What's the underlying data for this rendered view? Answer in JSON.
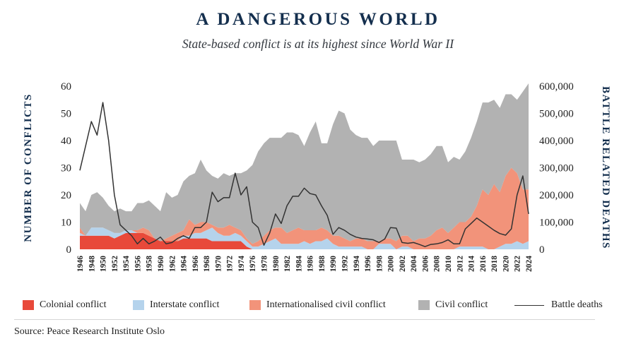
{
  "header": {
    "title": "A DANGEROUS WORLD",
    "subtitle": "State-based conflict is at its highest since World War II"
  },
  "source": "Source: Peace Research Institute Oslo",
  "colors": {
    "colonial": "#e8493a",
    "interstate": "#b5d3ec",
    "internationalised": "#f2937a",
    "civil": "#b2b2b2",
    "battle_line": "#333333",
    "axis_text": "#142f4e"
  },
  "chart_data": {
    "type": "area",
    "stacked": true,
    "x": [
      1946,
      1947,
      1948,
      1949,
      1950,
      1951,
      1952,
      1953,
      1954,
      1955,
      1956,
      1957,
      1958,
      1959,
      1960,
      1961,
      1962,
      1963,
      1964,
      1965,
      1966,
      1967,
      1968,
      1969,
      1970,
      1971,
      1972,
      1973,
      1974,
      1975,
      1976,
      1977,
      1978,
      1979,
      1980,
      1981,
      1982,
      1983,
      1984,
      1985,
      1986,
      1987,
      1988,
      1989,
      1990,
      1991,
      1992,
      1993,
      1994,
      1995,
      1996,
      1997,
      1998,
      1999,
      2000,
      2001,
      2002,
      2003,
      2004,
      2005,
      2006,
      2007,
      2008,
      2009,
      2010,
      2011,
      2012,
      2013,
      2014,
      2015,
      2016,
      2017,
      2018,
      2019,
      2020,
      2021,
      2022,
      2023,
      2024
    ],
    "x_tick_labels": [
      "1946",
      "1948",
      "1950",
      "1952",
      "1954",
      "1956",
      "1958",
      "1960",
      "1962",
      "1964",
      "1966",
      "1968",
      "1970",
      "1972",
      "1974",
      "1976",
      "1978",
      "1980",
      "1982",
      "1984",
      "1986",
      "1988",
      "1990",
      "1992",
      "1994",
      "1996",
      "1998",
      "2000",
      "2002",
      "2004",
      "2006",
      "2008",
      "2010",
      "2012",
      "2014",
      "2016",
      "2018",
      "2020",
      "2022",
      "2024"
    ],
    "ylabel": "NUMBER OF CONFLICTS",
    "y2label": "BATTLE RELATED DEATHS",
    "ylim": [
      0,
      60
    ],
    "y_ticks": [
      "0",
      "10",
      "20",
      "30",
      "40",
      "50",
      "60"
    ],
    "y2lim": [
      0,
      600000
    ],
    "y2_ticks": [
      "0",
      "100,000",
      "200,000",
      "300,000",
      "400,000",
      "500,000",
      "600,000"
    ],
    "legend": [
      "Colonial conflict",
      "Interstate conflict",
      "Internationalised civil conflict",
      "Civil conflict",
      "Battle deaths"
    ],
    "series": [
      {
        "name": "Colonial conflict",
        "values": [
          5,
          5,
          5,
          5,
          5,
          5,
          4,
          5,
          6,
          6,
          6,
          6,
          5,
          4,
          3,
          3,
          3,
          3,
          4,
          4,
          4,
          4,
          4,
          3,
          3,
          3,
          3,
          3,
          3,
          1,
          0,
          0,
          0,
          0,
          0,
          0,
          0,
          0,
          0,
          0,
          0,
          0,
          0,
          0,
          0,
          0,
          0,
          0,
          0,
          0,
          0,
          0,
          0,
          0,
          0,
          0,
          0,
          0,
          0,
          0,
          0,
          0,
          0,
          0,
          0,
          0,
          0,
          0,
          0,
          0,
          0,
          0,
          0,
          0,
          0,
          0,
          0,
          0,
          0
        ]
      },
      {
        "name": "Interstate conflict",
        "values": [
          1,
          0,
          3,
          3,
          3,
          2,
          2,
          1,
          1,
          1,
          0,
          0,
          0,
          0,
          0,
          0,
          0,
          0,
          1,
          1,
          2,
          2,
          3,
          5,
          3,
          2,
          2,
          3,
          2,
          2,
          1,
          1,
          2,
          3,
          4,
          2,
          2,
          2,
          2,
          3,
          2,
          3,
          3,
          4,
          2,
          1,
          1,
          1,
          1,
          1,
          0,
          0,
          2,
          2,
          2,
          0,
          1,
          1,
          0,
          0,
          0,
          0,
          0,
          0,
          0,
          0,
          1,
          1,
          1,
          1,
          1,
          0,
          0,
          1,
          2,
          2,
          3,
          2,
          3
        ]
      },
      {
        "name": "Internationalised civil conflict",
        "values": [
          2,
          0,
          0,
          0,
          0,
          0,
          0,
          0,
          0,
          0,
          1,
          2,
          2,
          0,
          0,
          1,
          2,
          3,
          2,
          6,
          3,
          4,
          3,
          1,
          2,
          3,
          4,
          2,
          2,
          1,
          1,
          2,
          3,
          4,
          4,
          6,
          4,
          5,
          6,
          4,
          5,
          4,
          5,
          3,
          3,
          4,
          3,
          2,
          3,
          3,
          3,
          3,
          1,
          2,
          2,
          3,
          4,
          4,
          3,
          4,
          4,
          5,
          7,
          8,
          6,
          8,
          9,
          9,
          11,
          15,
          21,
          20,
          24,
          20,
          25,
          28,
          25,
          20,
          19
        ]
      },
      {
        "name": "Civil conflict",
        "values": [
          9,
          9,
          12,
          13,
          11,
          9,
          8,
          9,
          7,
          7,
          10,
          9,
          11,
          12,
          11,
          17,
          14,
          14,
          18,
          16,
          19,
          23,
          19,
          18,
          18,
          20,
          18,
          20,
          21,
          25,
          29,
          33,
          34,
          34,
          33,
          33,
          37,
          36,
          34,
          31,
          36,
          40,
          31,
          32,
          41,
          46,
          46,
          41,
          38,
          37,
          38,
          35,
          37,
          36,
          36,
          37,
          28,
          28,
          30,
          28,
          29,
          30,
          31,
          30,
          26,
          26,
          23,
          26,
          29,
          31,
          32,
          34,
          31,
          31,
          30,
          27,
          27,
          36,
          39
        ]
      },
      {
        "name": "Battle deaths",
        "axis": "right",
        "values": [
          290000,
          380000,
          470000,
          420000,
          540000,
          400000,
          200000,
          90000,
          70000,
          50000,
          20000,
          40000,
          20000,
          30000,
          45000,
          20000,
          25000,
          40000,
          50000,
          40000,
          80000,
          80000,
          100000,
          210000,
          175000,
          190000,
          190000,
          280000,
          200000,
          230000,
          100000,
          80000,
          15000,
          60000,
          130000,
          95000,
          160000,
          195000,
          195000,
          225000,
          205000,
          200000,
          160000,
          125000,
          55000,
          80000,
          70000,
          55000,
          45000,
          40000,
          38000,
          35000,
          25000,
          38000,
          80000,
          78000,
          25000,
          22000,
          25000,
          18000,
          10000,
          18000,
          20000,
          25000,
          35000,
          20000,
          20000,
          75000,
          95000,
          115000,
          100000,
          85000,
          70000,
          58000,
          52000,
          75000,
          200000,
          270000,
          130000
        ]
      }
    ]
  }
}
